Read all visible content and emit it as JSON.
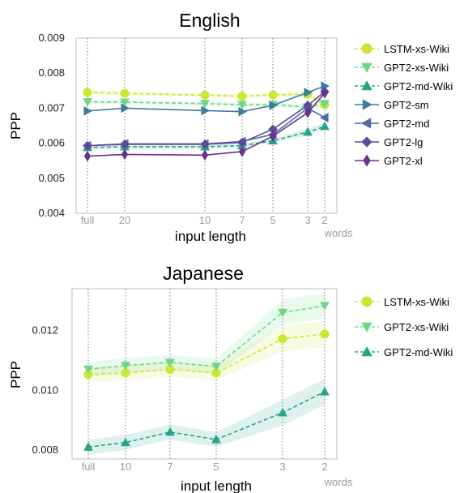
{
  "chart_data": [
    {
      "type": "line",
      "title": "English",
      "xlabel": "input length",
      "ylabel": "PPP",
      "x_extra_label": "words",
      "categories": [
        "full",
        "20",
        "10",
        "7",
        "5",
        "3",
        "2"
      ],
      "ylim": [
        0.004,
        0.009
      ],
      "yticks": [
        "0.004",
        "0.005",
        "0.006",
        "0.007",
        "0.008",
        "0.009"
      ],
      "grid": "vertical dotted lines at each input length",
      "legend": "right",
      "series": [
        {
          "name": "LSTM-xs-Wiki",
          "color": "#cce633",
          "marker": "circle",
          "dash": true,
          "band": true,
          "values": [
            0.00745,
            0.00742,
            0.00737,
            0.00734,
            0.00738,
            0.0074,
            0.0071
          ]
        },
        {
          "name": "GPT2-xs-Wiki",
          "color": "#6fd686",
          "marker": "triangle-down",
          "dash": true,
          "band": true,
          "values": [
            0.00718,
            0.00717,
            0.00713,
            0.0071,
            0.0071,
            0.00703,
            0.00713
          ]
        },
        {
          "name": "GPT2-md-Wiki",
          "color": "#28a387",
          "marker": "triangle-up",
          "dash": true,
          "band": true,
          "values": [
            0.00588,
            0.0059,
            0.0059,
            0.00593,
            0.00607,
            0.00632,
            0.00648
          ]
        },
        {
          "name": "GPT2-sm",
          "color": "#3e7c9c",
          "marker": "triangle-right",
          "dash": false,
          "band": false,
          "values": [
            0.00692,
            0.007,
            0.00693,
            0.0069,
            0.00708,
            0.00745,
            0.00763
          ]
        },
        {
          "name": "GPT2-md",
          "color": "#4f6aa3",
          "marker": "triangle-left",
          "dash": false,
          "band": false,
          "values": [
            0.00593,
            0.00598,
            0.00598,
            0.00605,
            0.00625,
            0.007,
            0.00673
          ]
        },
        {
          "name": "GPT2-lg",
          "color": "#5b4a99",
          "marker": "diamond",
          "dash": false,
          "band": false,
          "values": [
            0.00593,
            0.00597,
            0.00597,
            0.00602,
            0.0064,
            0.00708,
            0.00747
          ]
        },
        {
          "name": "GPT2-xl",
          "color": "#6a2f8f",
          "marker": "diamond-thin",
          "dash": false,
          "band": false,
          "values": [
            0.00563,
            0.00568,
            0.00566,
            0.00576,
            0.0062,
            0.00687,
            0.00743
          ]
        }
      ]
    },
    {
      "type": "line",
      "title": "Japanese",
      "xlabel": "input length",
      "ylabel": "PPP",
      "x_extra_label": "words",
      "categories": [
        "full",
        "10",
        "7",
        "5",
        "3",
        "2"
      ],
      "ylim": [
        0.0077,
        0.0134
      ],
      "yticks": [
        "0.008",
        "0.010",
        "0.012"
      ],
      "grid": "vertical dotted lines at each input length",
      "legend": "right",
      "series": [
        {
          "name": "LSTM-xs-Wiki",
          "color": "#cce633",
          "marker": "circle",
          "dash": true,
          "band": true,
          "values": [
            0.01053,
            0.01058,
            0.0107,
            0.01058,
            0.01172,
            0.01188
          ]
        },
        {
          "name": "GPT2-xs-Wiki",
          "color": "#6fd686",
          "marker": "triangle-down",
          "dash": true,
          "band": true,
          "values": [
            0.0107,
            0.01083,
            0.01093,
            0.0108,
            0.0126,
            0.01283
          ]
        },
        {
          "name": "GPT2-md-Wiki",
          "color": "#28a387",
          "marker": "triangle-up",
          "dash": true,
          "band": true,
          "values": [
            0.0081,
            0.00825,
            0.0086,
            0.00835,
            0.00925,
            0.00995
          ]
        }
      ]
    }
  ]
}
